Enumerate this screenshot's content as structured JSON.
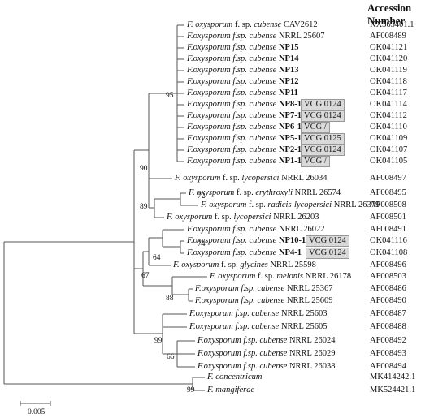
{
  "header": "Accession Number",
  "taxa": [
    {
      "parts": [
        {
          "text": "F. oxysporum",
          "style": "italic"
        },
        {
          "text": " f. sp. ",
          "style": "normal"
        },
        {
          "text": "cubense",
          "style": "italic"
        },
        {
          "text": " CAV2612",
          "style": "normal"
        }
      ],
      "accession": "KX365401.1"
    },
    {
      "parts": [
        {
          "text": "F.oxysporum f.sp. cubense",
          "style": "italic"
        },
        {
          "text": " NRRL 25607",
          "style": "normal"
        }
      ],
      "accession": "AF008489"
    },
    {
      "parts": [
        {
          "text": "F.oxysporum f.sp. cubense ",
          "style": "italic"
        },
        {
          "text": "NP15",
          "style": "bold"
        }
      ],
      "accession": "OK041121"
    },
    {
      "parts": [
        {
          "text": "F.oxysporum f.sp. cubense ",
          "style": "italic"
        },
        {
          "text": "NP14",
          "style": "bold"
        }
      ],
      "accession": "OK041120"
    },
    {
      "parts": [
        {
          "text": "F.oxysporum f.sp. cubense ",
          "style": "italic"
        },
        {
          "text": "NP13",
          "style": "bold"
        }
      ],
      "accession": "OK041119"
    },
    {
      "parts": [
        {
          "text": "F.oxysporum f.sp. cubense ",
          "style": "italic"
        },
        {
          "text": "NP12",
          "style": "bold"
        }
      ],
      "accession": "OK041118"
    },
    {
      "parts": [
        {
          "text": "F.oxysporum f.sp. cubense ",
          "style": "italic"
        },
        {
          "text": "NP11",
          "style": "bold"
        }
      ],
      "accession": "OK041117"
    },
    {
      "parts": [
        {
          "text": "F.oxysporum f.sp. cubense ",
          "style": "italic"
        },
        {
          "text": "NP8-1",
          "style": "bold"
        }
      ],
      "vcg": "VCG 0124",
      "accession": "OK041114"
    },
    {
      "parts": [
        {
          "text": "F.oxysporum f.sp. cubense ",
          "style": "italic"
        },
        {
          "text": "NP7-1",
          "style": "bold"
        }
      ],
      "vcg": "VCG 0124",
      "accession": "OK041112"
    },
    {
      "parts": [
        {
          "text": "F.oxysporum f.sp. cubense ",
          "style": "italic"
        },
        {
          "text": "NP6-1",
          "style": "bold"
        }
      ],
      "vcg": "VCG /",
      "accession": "OK041110"
    },
    {
      "parts": [
        {
          "text": "F.oxysporum f.sp. cubense ",
          "style": "italic"
        },
        {
          "text": "NP5-1",
          "style": "bold"
        }
      ],
      "vcg": "VCG 0125",
      "accession": "OK041109"
    },
    {
      "parts": [
        {
          "text": "F.oxysporum f.sp. cubense ",
          "style": "italic"
        },
        {
          "text": "NP2-1",
          "style": "bold"
        }
      ],
      "vcg": "VCG 0124",
      "accession": "OK041107"
    },
    {
      "parts": [
        {
          "text": "F.oxysporum f.sp. cubense ",
          "style": "italic"
        },
        {
          "text": "NP1-1",
          "style": "bold"
        }
      ],
      "vcg": "VCG /",
      "accession": "OK041105"
    },
    {
      "parts": [
        {
          "text": "F. oxysporum",
          "style": "italic"
        },
        {
          "text": " f. sp. ",
          "style": "normal"
        },
        {
          "text": "lycopersici",
          "style": "italic"
        },
        {
          "text": " NRRL 26034",
          "style": "normal"
        }
      ],
      "accession": "AF008497"
    },
    {
      "parts": [
        {
          "text": "F. oxysporum",
          "style": "italic"
        },
        {
          "text": " f. sp. ",
          "style": "normal"
        },
        {
          "text": "erythroxyli",
          "style": "italic"
        },
        {
          "text": " NRRL 26574",
          "style": "normal"
        }
      ],
      "accession": "AF008495"
    },
    {
      "parts": [
        {
          "text": "F. oxysporum",
          "style": "italic"
        },
        {
          "text": " f. sp. ",
          "style": "normal"
        },
        {
          "text": "radicis-lycopersici",
          "style": "italic"
        },
        {
          "text": " NRRL 26379",
          "style": "normal"
        }
      ],
      "accession": "AF008508"
    },
    {
      "parts": [
        {
          "text": "F. oxysporum",
          "style": "italic"
        },
        {
          "text": " f. sp. ",
          "style": "normal"
        },
        {
          "text": "lycopersici",
          "style": "italic"
        },
        {
          "text": " NRRL 26203",
          "style": "normal"
        }
      ],
      "accession": "AF008501"
    },
    {
      "parts": [
        {
          "text": "F.oxysporum f.sp. cubense",
          "style": "italic"
        },
        {
          "text": " NRRL 26022",
          "style": "normal"
        }
      ],
      "accession": "AF008491"
    },
    {
      "parts": [
        {
          "text": "F.oxysporum f.sp. cubense ",
          "style": "italic"
        },
        {
          "text": "NP10-1",
          "style": "bold"
        }
      ],
      "vcg": "VCG 0124",
      "accession": "OK041116"
    },
    {
      "parts": [
        {
          "text": "F.oxysporum f.sp. cubense ",
          "style": "italic"
        },
        {
          "text": "NP4-1",
          "style": "bold"
        }
      ],
      "vcg": "VCG 0124",
      "accession": "OK041108"
    },
    {
      "parts": [
        {
          "text": "F. oxysporum",
          "style": "italic"
        },
        {
          "text": " f. sp. ",
          "style": "normal"
        },
        {
          "text": "glycines",
          "style": "italic"
        },
        {
          "text": " NRRL 25598",
          "style": "normal"
        }
      ],
      "accession": "AF008496"
    },
    {
      "parts": [
        {
          "text": "F. oxysporum",
          "style": "italic"
        },
        {
          "text": " f. sp. ",
          "style": "normal"
        },
        {
          "text": "melonis",
          "style": "italic"
        },
        {
          "text": " NRRL 26178",
          "style": "normal"
        }
      ],
      "accession": "AF008503"
    },
    {
      "parts": [
        {
          "text": "F.oxysporum f.sp. cubense",
          "style": "italic"
        },
        {
          "text": " NRRL 25367",
          "style": "normal"
        }
      ],
      "accession": "AF008486"
    },
    {
      "parts": [
        {
          "text": "F.oxysporum f.sp. cubense",
          "style": "italic"
        },
        {
          "text": " NRRL 25609",
          "style": "normal"
        }
      ],
      "accession": "AF008490"
    },
    {
      "parts": [
        {
          "text": "F.oxysporum f.sp. cubense",
          "style": "italic"
        },
        {
          "text": " NRRL 25603",
          "style": "normal"
        }
      ],
      "accession": "AF008487"
    },
    {
      "parts": [
        {
          "text": "F.oxysporum f.sp. cubense",
          "style": "italic"
        },
        {
          "text": " NRRL 25605",
          "style": "normal"
        }
      ],
      "accession": "AF008488"
    },
    {
      "parts": [
        {
          "text": "F.oxysporum f.sp. cubense",
          "style": "italic"
        },
        {
          "text": " NRRL 26024",
          "style": "normal"
        }
      ],
      "accession": "AF008492"
    },
    {
      "parts": [
        {
          "text": "F.oxysporum f.sp. cubense",
          "style": "italic"
        },
        {
          "text": " NRRL 26029",
          "style": "normal"
        }
      ],
      "accession": "AF008493"
    },
    {
      "parts": [
        {
          "text": "F.oxysporum f.sp. cubense",
          "style": "italic"
        },
        {
          "text": " NRRL 26038",
          "style": "normal"
        }
      ],
      "accession": "AF008494"
    },
    {
      "parts": [
        {
          "text": "F. concentricum",
          "style": "italic"
        }
      ],
      "accession": "MK414242.1"
    },
    {
      "parts": [
        {
          "text": "F. mangiferae",
          "style": "italic"
        }
      ],
      "accession": "MK524421.1"
    }
  ],
  "bootstrap": [
    "95",
    "90",
    "72",
    "89",
    "74",
    "64",
    "67",
    "88",
    "99",
    "66",
    "99"
  ],
  "scale_bar": "0.005"
}
